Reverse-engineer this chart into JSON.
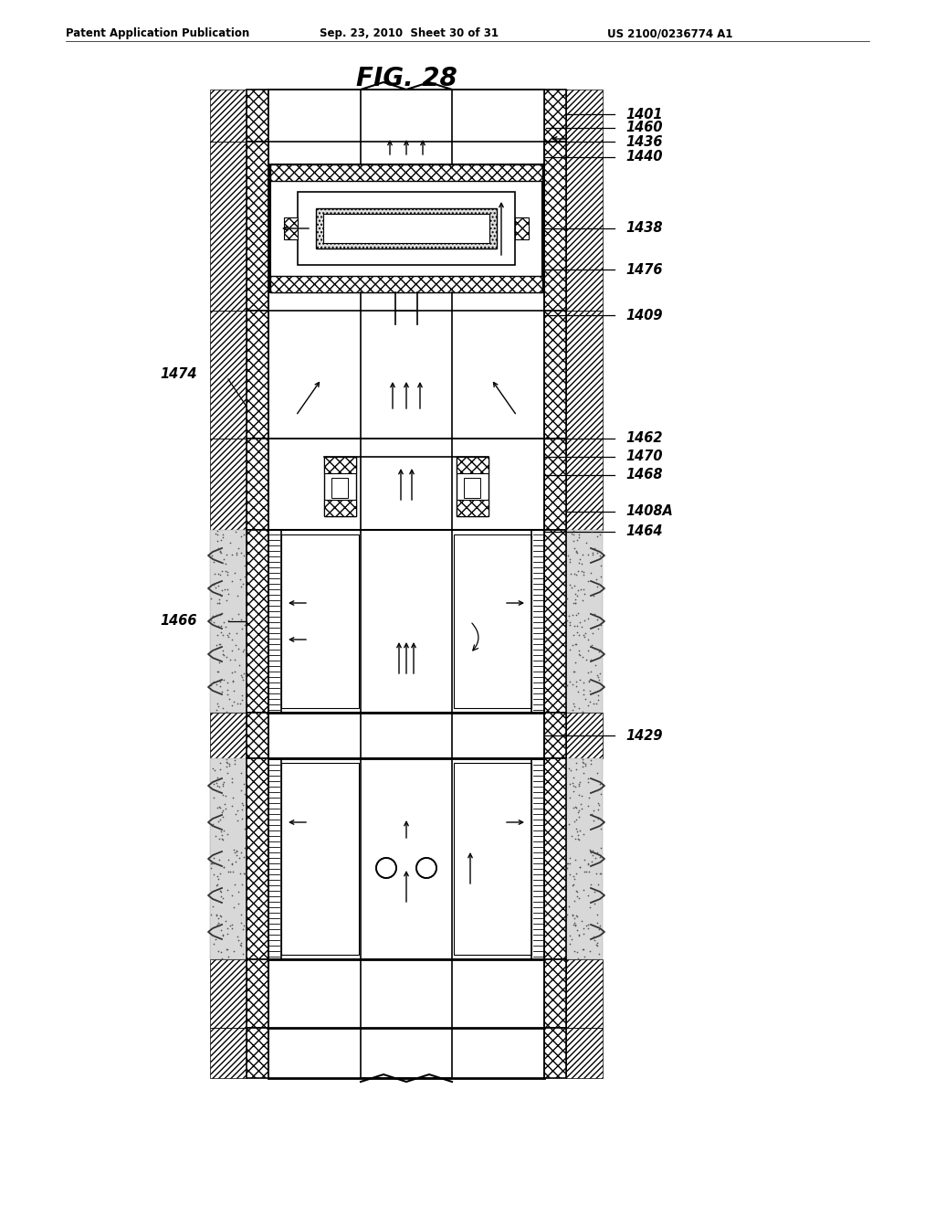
{
  "header_left": "Patent Application Publication",
  "header_center": "Sep. 23, 2010  Sheet 30 of 31",
  "header_right": "US 2100/0236774 A1",
  "figure_title": "FIG. 28",
  "bg_color": "#ffffff"
}
